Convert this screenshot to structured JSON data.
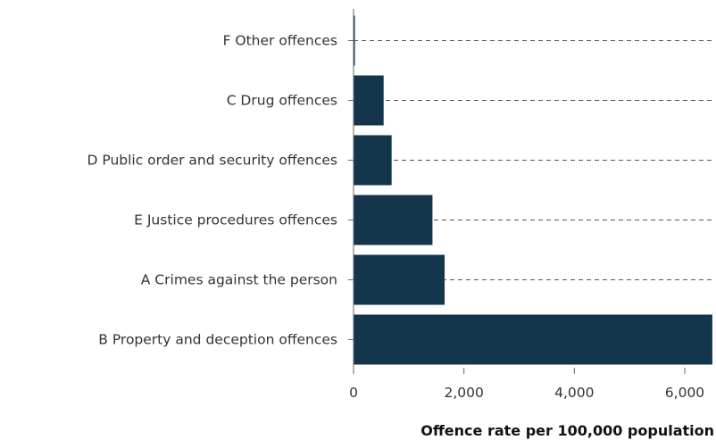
{
  "chart_data": {
    "type": "bar",
    "orientation": "horizontal",
    "categories": [
      "F Other offences",
      "C Drug offences",
      "D Public order and security offences",
      "E Justice procedures offences",
      "A Crimes against the person",
      "B Property and deception offences"
    ],
    "values": [
      25,
      545,
      690,
      1430,
      1650,
      6500
    ],
    "xlabel": "Offence rate per 100,000 population",
    "ylabel": "",
    "xlim": [
      0,
      6550
    ],
    "xticks": [
      0,
      2000,
      4000,
      6000
    ],
    "xtick_labels": [
      "0",
      "2,000",
      "4,000",
      "6,000"
    ],
    "grid": "dashed horizontal per category",
    "bar_color": "#14364d"
  }
}
